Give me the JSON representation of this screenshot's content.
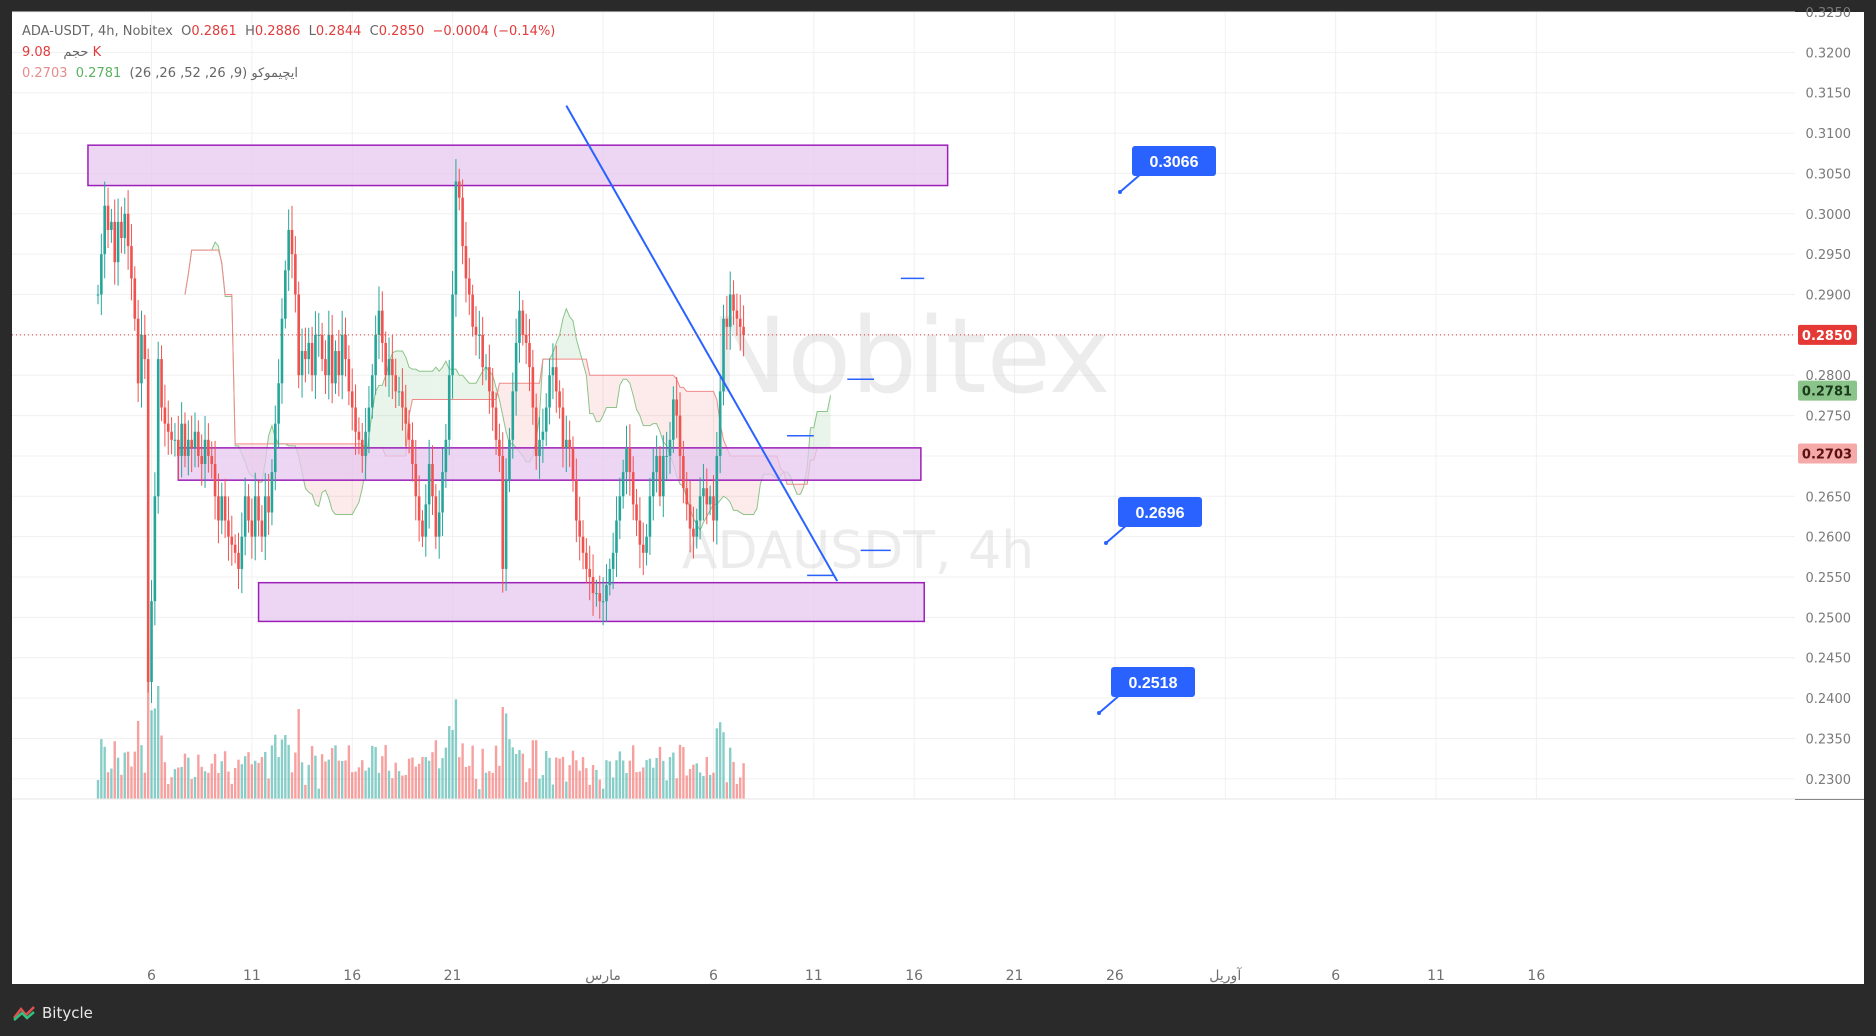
{
  "legend": {
    "symbol": "ADA-USDT, 4h, Nobitex",
    "open_label": "O",
    "open": "0.2861",
    "high_label": "H",
    "high": "0.2886",
    "low_label": "L",
    "low": "0.2844",
    "close_label": "C",
    "close": "0.2850",
    "change": "−0.0004 (−0.14%)",
    "volume_label": "حجم",
    "volume": "9.08 K",
    "ichimoku_label": "ایچیموکو (9, 26, 52, 26, 26)",
    "ichimoku_a": "0.2781",
    "ichimoku_b": "0.2703"
  },
  "watermark": {
    "line1": "Nobitex",
    "line2": "ADAUSDT, 4h"
  },
  "footer": {
    "brand": "Bitycle"
  },
  "colors": {
    "up": "#26a69a",
    "down": "#ef5350",
    "zone_fill": "#e6c8ef",
    "zone_stroke": "#9b1fb8",
    "trendline": "#2962ff",
    "callout": "#2962ff",
    "price_badge": "#e53935",
    "cloud_a_badge": "#8bc48a",
    "cloud_b_badge": "#f5a9a9"
  },
  "chart_data": {
    "type": "candlestick",
    "symbol": "ADA-USDT",
    "interval": "4h",
    "y_range": [
      0.2275,
      0.325
    ],
    "y_ticks": [
      "0.3250",
      "0.3200",
      "0.3150",
      "0.3100",
      "0.3050",
      "0.3000",
      "0.2950",
      "0.2900",
      "0.2850",
      "0.2800",
      "0.2750",
      "0.2700",
      "0.2650",
      "0.2600",
      "0.2550",
      "0.2500",
      "0.2450",
      "0.2400",
      "0.2350",
      "0.2300"
    ],
    "x_ticks": [
      {
        "label": "6",
        "bar": 16
      },
      {
        "label": "11",
        "bar": 46
      },
      {
        "label": "16",
        "bar": 76
      },
      {
        "label": "21",
        "bar": 106
      },
      {
        "label": "مارس",
        "bar": 151
      },
      {
        "label": "6",
        "bar": 184
      },
      {
        "label": "11",
        "bar": 214
      },
      {
        "label": "16",
        "bar": 244
      },
      {
        "label": "21",
        "bar": 274
      },
      {
        "label": "26",
        "bar": 304
      },
      {
        "label": "آوریل",
        "bar": 337
      },
      {
        "label": "6",
        "bar": 370
      },
      {
        "label": "11",
        "bar": 400
      },
      {
        "label": "16",
        "bar": 430
      }
    ],
    "bar_count_visible": 260,
    "last_price": 0.285,
    "price_badges": [
      {
        "label": "0.2850",
        "value": 0.285,
        "role": "last"
      },
      {
        "label": "0.2781",
        "value": 0.2781,
        "role": "cloud_a"
      },
      {
        "label": "0.2703",
        "value": 0.2703,
        "role": "cloud_b"
      }
    ],
    "volume_badge": "9.08 K",
    "closes": [
      0.29,
      0.295,
      0.301,
      0.298,
      0.299,
      0.294,
      0.299,
      0.297,
      0.3,
      0.296,
      0.292,
      0.287,
      0.279,
      0.285,
      0.282,
      0.242,
      0.252,
      0.265,
      0.282,
      0.276,
      0.274,
      0.273,
      0.272,
      0.272,
      0.27,
      0.274,
      0.27,
      0.272,
      0.271,
      0.273,
      0.27,
      0.269,
      0.272,
      0.27,
      0.269,
      0.265,
      0.262,
      0.265,
      0.262,
      0.26,
      0.259,
      0.258,
      0.256,
      0.26,
      0.265,
      0.262,
      0.26,
      0.265,
      0.262,
      0.26,
      0.265,
      0.263,
      0.268,
      0.274,
      0.279,
      0.287,
      0.293,
      0.298,
      0.295,
      0.29,
      0.28,
      0.283,
      0.282,
      0.284,
      0.28,
      0.285,
      0.285,
      0.282,
      0.28,
      0.285,
      0.279,
      0.283,
      0.28,
      0.285,
      0.282,
      0.278,
      0.276,
      0.273,
      0.272,
      0.27,
      0.273,
      0.276,
      0.28,
      0.285,
      0.288,
      0.284,
      0.28,
      0.282,
      0.28,
      0.278,
      0.278,
      0.276,
      0.274,
      0.272,
      0.269,
      0.265,
      0.262,
      0.26,
      0.264,
      0.269,
      0.265,
      0.26,
      0.263,
      0.268,
      0.272,
      0.28,
      0.29,
      0.304,
      0.302,
      0.296,
      0.292,
      0.29,
      0.286,
      0.285,
      0.285,
      0.281,
      0.281,
      0.278,
      0.276,
      0.272,
      0.27,
      0.256,
      0.267,
      0.272,
      0.278,
      0.284,
      0.288,
      0.285,
      0.284,
      0.281,
      0.276,
      0.27,
      0.272,
      0.273,
      0.276,
      0.28,
      0.281,
      0.278,
      0.276,
      0.271,
      0.272,
      0.271,
      0.267,
      0.262,
      0.26,
      0.258,
      0.256,
      0.255,
      0.253,
      0.253,
      0.252,
      0.252,
      0.254,
      0.256,
      0.258,
      0.262,
      0.265,
      0.268,
      0.271,
      0.268,
      0.264,
      0.262,
      0.259,
      0.258,
      0.26,
      0.265,
      0.268,
      0.27,
      0.265,
      0.27,
      0.27,
      0.272,
      0.277,
      0.275,
      0.27,
      0.266,
      0.264,
      0.261,
      0.26,
      0.262,
      0.265,
      0.266,
      0.264,
      0.265,
      0.262,
      0.27,
      0.278,
      0.287,
      0.286,
      0.29,
      0.288,
      0.287,
      0.286,
      0.285
    ],
    "zones": [
      {
        "low": 0.3035,
        "high": 0.3085,
        "bar_from": -3,
        "bar_to": 254,
        "callout": "0.3066"
      },
      {
        "low": 0.267,
        "high": 0.271,
        "bar_from": 24,
        "bar_to": 246,
        "callout": "0.2696"
      },
      {
        "low": 0.2495,
        "high": 0.2543,
        "bar_from": 48,
        "bar_to": 247,
        "callout": "0.2518"
      }
    ],
    "trendline": [
      {
        "bar": 140,
        "value": 0.3134
      },
      {
        "bar": 221,
        "value": 0.2545
      }
    ],
    "marker_lines": [
      {
        "bar_from": 206,
        "bar_to": 214,
        "value": 0.2725
      },
      {
        "bar_from": 212,
        "bar_to": 220,
        "value": 0.2552
      },
      {
        "bar_from": 224,
        "bar_to": 232,
        "value": 0.2795
      },
      {
        "bar_from": 228,
        "bar_to": 237,
        "value": 0.2583
      },
      {
        "bar_from": 240,
        "bar_to": 247,
        "value": 0.292
      }
    ]
  }
}
